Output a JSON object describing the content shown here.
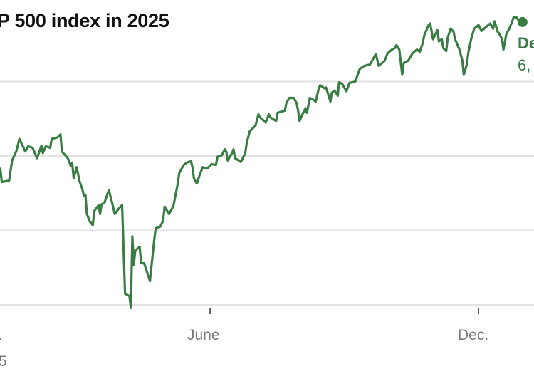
{
  "title": "P 500 index in 2025",
  "colors": {
    "line": "#3a7d44",
    "grid": "#e3e3e3",
    "tick_label": "#777777",
    "title": "#111111"
  },
  "end_label": {
    "line1": "De",
    "line2": "6,"
  },
  "x_labels": {
    "left_line1": ".",
    "left_line2": "5",
    "june": "June",
    "dec": "Dec."
  },
  "chart_data": {
    "type": "line",
    "title": "P 500 index in 2025",
    "x_ticks": [
      {
        "date": "2025-06-01",
        "label": "June"
      },
      {
        "date": "2025-12-01",
        "label": "Dec."
      }
    ],
    "y_gridlines": [
      5000,
      5500,
      6000,
      6500
    ],
    "ylim": [
      4980,
      6900
    ],
    "grid": true,
    "end_marker": true,
    "series": [
      {
        "points": [
          [
            "2025-01-09",
            5915
          ],
          [
            "2025-01-10",
            5825
          ],
          [
            "2025-01-15",
            5835
          ],
          [
            "2025-01-17",
            5970
          ],
          [
            "2025-01-20",
            6035
          ],
          [
            "2025-01-22",
            6115
          ],
          [
            "2025-01-26",
            6030
          ],
          [
            "2025-01-28",
            6065
          ],
          [
            "2025-01-31",
            6055
          ],
          [
            "2025-02-03",
            5985
          ],
          [
            "2025-02-06",
            6070
          ],
          [
            "2025-02-07",
            6020
          ],
          [
            "2025-02-09",
            6065
          ],
          [
            "2025-02-12",
            6055
          ],
          [
            "2025-02-13",
            6115
          ],
          [
            "2025-02-17",
            6125
          ],
          [
            "2025-02-19",
            6145
          ],
          [
            "2025-02-20",
            6030
          ],
          [
            "2025-02-24",
            5985
          ],
          [
            "2025-02-26",
            5935
          ],
          [
            "2025-02-27",
            5955
          ],
          [
            "2025-02-28",
            5850
          ],
          [
            "2025-03-02",
            5925
          ],
          [
            "2025-03-04",
            5830
          ],
          [
            "2025-03-06",
            5775
          ],
          [
            "2025-03-07",
            5730
          ],
          [
            "2025-03-08",
            5740
          ],
          [
            "2025-03-09",
            5610
          ],
          [
            "2025-03-11",
            5560
          ],
          [
            "2025-03-13",
            5535
          ],
          [
            "2025-03-14",
            5630
          ],
          [
            "2025-03-17",
            5670
          ],
          [
            "2025-03-18",
            5610
          ],
          [
            "2025-03-19",
            5675
          ],
          [
            "2025-03-21",
            5685
          ],
          [
            "2025-03-23",
            5745
          ],
          [
            "2025-03-24",
            5770
          ],
          [
            "2025-03-26",
            5695
          ],
          [
            "2025-03-28",
            5610
          ],
          [
            "2025-03-31",
            5650
          ],
          [
            "2025-04-02",
            5670
          ],
          [
            "2025-04-04",
            5075
          ],
          [
            "2025-04-07",
            5060
          ],
          [
            "2025-04-08",
            4980
          ],
          [
            "2025-04-09",
            5460
          ],
          [
            "2025-04-10",
            5270
          ],
          [
            "2025-04-11",
            5365
          ],
          [
            "2025-04-14",
            5390
          ],
          [
            "2025-04-15",
            5280
          ],
          [
            "2025-04-17",
            5280
          ],
          [
            "2025-04-21",
            5160
          ],
          [
            "2025-04-24",
            5445
          ],
          [
            "2025-04-25",
            5515
          ],
          [
            "2025-04-28",
            5525
          ],
          [
            "2025-04-30",
            5565
          ],
          [
            "2025-05-01",
            5660
          ],
          [
            "2025-05-04",
            5610
          ],
          [
            "2025-05-07",
            5665
          ],
          [
            "2025-05-10",
            5815
          ],
          [
            "2025-05-11",
            5885
          ],
          [
            "2025-05-14",
            5940
          ],
          [
            "2025-05-16",
            5955
          ],
          [
            "2025-05-19",
            5965
          ],
          [
            "2025-05-20",
            5925
          ],
          [
            "2025-05-21",
            5850
          ],
          [
            "2025-05-23",
            5815
          ],
          [
            "2025-05-25",
            5875
          ],
          [
            "2025-05-27",
            5925
          ],
          [
            "2025-05-30",
            5915
          ],
          [
            "2025-06-02",
            5945
          ],
          [
            "2025-06-05",
            5940
          ],
          [
            "2025-06-06",
            5995
          ],
          [
            "2025-06-09",
            6005
          ],
          [
            "2025-06-11",
            6045
          ],
          [
            "2025-06-12",
            6030
          ],
          [
            "2025-06-13",
            5970
          ],
          [
            "2025-06-16",
            6020
          ],
          [
            "2025-06-17",
            6045
          ],
          [
            "2025-06-18",
            5985
          ],
          [
            "2025-06-22",
            5960
          ],
          [
            "2025-06-25",
            6020
          ],
          [
            "2025-06-26",
            6090
          ],
          [
            "2025-06-28",
            6165
          ],
          [
            "2025-06-30",
            6185
          ],
          [
            "2025-07-02",
            6205
          ],
          [
            "2025-07-04",
            6280
          ],
          [
            "2025-07-05",
            6260
          ],
          [
            "2025-07-09",
            6225
          ],
          [
            "2025-07-11",
            6280
          ],
          [
            "2025-07-12",
            6260
          ],
          [
            "2025-07-16",
            6235
          ],
          [
            "2025-07-17",
            6290
          ],
          [
            "2025-07-22",
            6305
          ],
          [
            "2025-07-23",
            6355
          ],
          [
            "2025-07-25",
            6390
          ],
          [
            "2025-07-28",
            6390
          ],
          [
            "2025-07-30",
            6355
          ],
          [
            "2025-07-31",
            6305
          ],
          [
            "2025-08-01",
            6235
          ],
          [
            "2025-08-03",
            6280
          ],
          [
            "2025-08-05",
            6320
          ],
          [
            "2025-08-06",
            6290
          ],
          [
            "2025-08-07",
            6340
          ],
          [
            "2025-08-08",
            6390
          ],
          [
            "2025-08-10",
            6380
          ],
          [
            "2025-08-12",
            6365
          ],
          [
            "2025-08-14",
            6450
          ],
          [
            "2025-08-15",
            6475
          ],
          [
            "2025-08-18",
            6455
          ],
          [
            "2025-08-19",
            6460
          ],
          [
            "2025-08-21",
            6400
          ],
          [
            "2025-08-22",
            6365
          ],
          [
            "2025-08-23",
            6425
          ],
          [
            "2025-08-25",
            6440
          ],
          [
            "2025-08-27",
            6405
          ],
          [
            "2025-08-28",
            6495
          ],
          [
            "2025-08-30",
            6485
          ],
          [
            "2025-09-02",
            6435
          ],
          [
            "2025-09-04",
            6490
          ],
          [
            "2025-09-08",
            6500
          ],
          [
            "2025-09-11",
            6585
          ],
          [
            "2025-09-14",
            6605
          ],
          [
            "2025-09-18",
            6615
          ],
          [
            "2025-09-20",
            6650
          ],
          [
            "2025-09-22",
            6685
          ],
          [
            "2025-09-24",
            6605
          ],
          [
            "2025-09-28",
            6640
          ],
          [
            "2025-09-30",
            6690
          ],
          [
            "2025-10-03",
            6715
          ],
          [
            "2025-10-05",
            6725
          ],
          [
            "2025-10-06",
            6745
          ],
          [
            "2025-10-08",
            6715
          ],
          [
            "2025-10-10",
            6545
          ],
          [
            "2025-10-11",
            6625
          ],
          [
            "2025-10-14",
            6640
          ],
          [
            "2025-10-17",
            6690
          ],
          [
            "2025-10-20",
            6715
          ],
          [
            "2025-10-22",
            6700
          ],
          [
            "2025-10-24",
            6760
          ],
          [
            "2025-10-25",
            6810
          ],
          [
            "2025-10-28",
            6880
          ],
          [
            "2025-10-29",
            6890
          ],
          [
            "2025-10-31",
            6785
          ],
          [
            "2025-11-02",
            6825
          ],
          [
            "2025-11-03",
            6845
          ],
          [
            "2025-11-04",
            6770
          ],
          [
            "2025-11-06",
            6785
          ],
          [
            "2025-11-07",
            6725
          ],
          [
            "2025-11-09",
            6705
          ],
          [
            "2025-11-10",
            6795
          ],
          [
            "2025-11-12",
            6855
          ],
          [
            "2025-11-14",
            6835
          ],
          [
            "2025-11-15",
            6785
          ],
          [
            "2025-11-18",
            6715
          ],
          [
            "2025-11-20",
            6640
          ],
          [
            "2025-11-21",
            6545
          ],
          [
            "2025-11-23",
            6615
          ],
          [
            "2025-11-24",
            6690
          ],
          [
            "2025-11-26",
            6785
          ],
          [
            "2025-11-28",
            6855
          ],
          [
            "2025-12-01",
            6880
          ],
          [
            "2025-12-03",
            6840
          ],
          [
            "2025-12-06",
            6865
          ],
          [
            "2025-12-09",
            6890
          ],
          [
            "2025-12-11",
            6855
          ],
          [
            "2025-12-12",
            6905
          ],
          [
            "2025-12-14",
            6835
          ],
          [
            "2025-12-15",
            6825
          ],
          [
            "2025-12-17",
            6785
          ],
          [
            "2025-12-18",
            6715
          ],
          [
            "2025-12-20",
            6820
          ],
          [
            "2025-12-22",
            6855
          ],
          [
            "2025-12-24",
            6905
          ],
          [
            "2025-12-25",
            6935
          ],
          [
            "2025-12-27",
            6930
          ],
          [
            "2025-12-28",
            6915
          ],
          [
            "2025-12-31",
            6900
          ]
        ]
      }
    ]
  }
}
